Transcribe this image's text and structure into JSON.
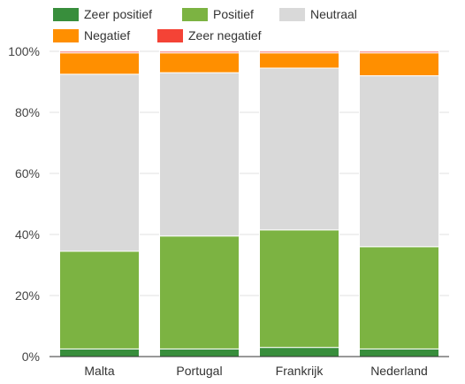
{
  "chart_data": {
    "type": "bar",
    "stacked": true,
    "percent": true,
    "categories": [
      "Malta",
      "Portugal",
      "Frankrijk",
      "Nederland"
    ],
    "series": [
      {
        "name": "Zeer positief",
        "color": "#388e3c",
        "values": [
          2.5,
          2.5,
          3,
          2.5
        ]
      },
      {
        "name": "Positief",
        "color": "#7cb342",
        "values": [
          32,
          37,
          38.5,
          33.5
        ]
      },
      {
        "name": "Neutraal",
        "color": "#d9d9d9",
        "values": [
          58,
          53.5,
          53,
          56
        ]
      },
      {
        "name": "Negatief",
        "color": "#ff8f00",
        "values": [
          7,
          6.5,
          5,
          7.5
        ]
      },
      {
        "name": "Zeer negatief",
        "color": "#f44336",
        "values": [
          0.5,
          0.5,
          0.5,
          0.5
        ]
      }
    ],
    "yticks": [
      "0%",
      "20%",
      "40%",
      "60%",
      "80%",
      "100%"
    ],
    "ylim": [
      0,
      100
    ],
    "grid": true,
    "legend": "top"
  }
}
